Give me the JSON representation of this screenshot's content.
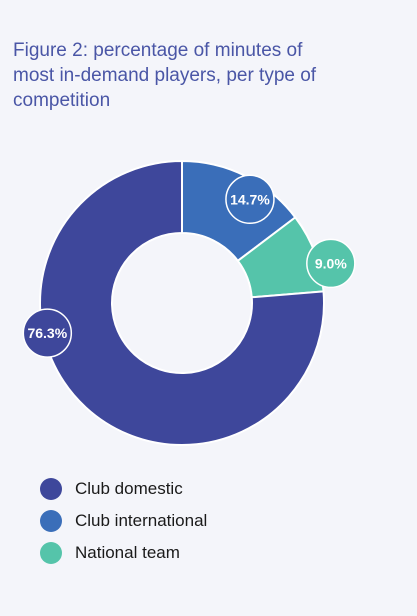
{
  "title_lines": [
    "Figure 2: percentage of minutes of",
    "most in-demand players, per type of",
    "competition"
  ],
  "chart_data": {
    "type": "pie",
    "title": "Figure 2: percentage of minutes of most in-demand players, per type of competition",
    "unit": "%",
    "series": [
      {
        "name": "Club domestic",
        "value": 76.3,
        "label": "76.3%",
        "color": "#3e479b"
      },
      {
        "name": "Club international",
        "value": 14.7,
        "label": "14.7%",
        "color": "#3a6eb9"
      },
      {
        "name": "National team",
        "value": 9.0,
        "label": "9.0%",
        "color": "#55c4aa"
      }
    ],
    "donut": true,
    "legend_position": "bottom-left"
  }
}
